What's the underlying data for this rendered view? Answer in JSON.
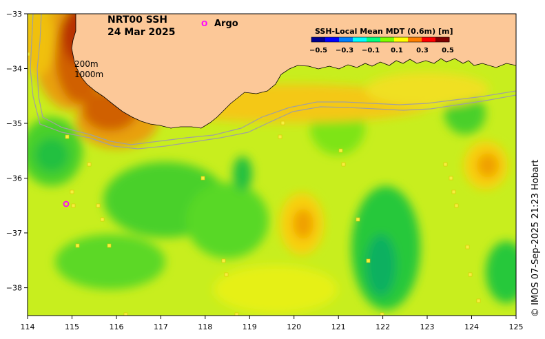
{
  "map": {
    "title_line1": "NRT00 SSH",
    "title_line2": "24 Mar 2025",
    "legend_label": "Argo",
    "legend_marker": "O",
    "isobath_label_200": "200m",
    "isobath_label_1000": "1000m",
    "credit": "© IMOS 07-Sep-2025 21:23 Hobart",
    "x_ticks": [
      "114",
      "115",
      "116",
      "117",
      "118",
      "119",
      "120",
      "121",
      "122",
      "123",
      "124",
      "125"
    ],
    "y_ticks": [
      "−33",
      "−34",
      "−35",
      "−36",
      "−37",
      "−38"
    ],
    "colorbar": {
      "title": "SSH-Local Mean MDT (0.6m) [m]",
      "ticks": [
        "−0.5",
        "−0.3",
        "−0.1",
        "0.1",
        "0.3",
        "0.5"
      ],
      "colors": [
        "#00008f",
        "#0000ff",
        "#0080ff",
        "#00ffff",
        "#00ff80",
        "#80ff00",
        "#ffff00",
        "#ff8000",
        "#ff0000",
        "#800000"
      ]
    },
    "colors": {
      "land": "#fcc898",
      "ocean_base": "#c8ee1e",
      "argo": "#ff00ff",
      "isobath": "#a0a0a0"
    }
  }
}
